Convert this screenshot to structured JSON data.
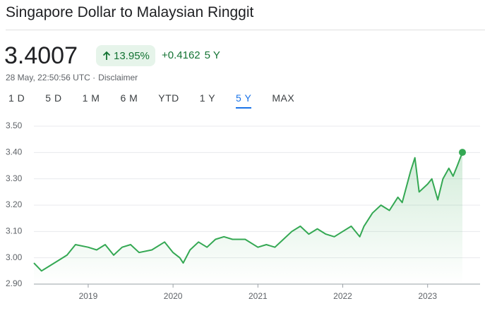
{
  "header": {
    "title": "Singapore Dollar to Malaysian Ringgit",
    "price": "3.4007",
    "change_percent": "13.95%",
    "change": "+0.4162",
    "period": "5 Y",
    "timestamp": "28 May, 22:50:56 UTC ·",
    "disclaimer": "Disclaimer"
  },
  "tabs": [
    "1 D",
    "5 D",
    "1 M",
    "6 M",
    "YTD",
    "1 Y",
    "5 Y",
    "MAX"
  ],
  "selected_tab": 6,
  "chart_data": {
    "type": "line",
    "color": "#34a853",
    "grid": true,
    "x": [
      2018.36,
      2018.45,
      2018.55,
      2018.65,
      2018.75,
      2018.85,
      2019.0,
      2019.1,
      2019.2,
      2019.3,
      2019.4,
      2019.5,
      2019.6,
      2019.75,
      2019.9,
      2020.0,
      2020.08,
      2020.12,
      2020.2,
      2020.3,
      2020.4,
      2020.5,
      2020.6,
      2020.7,
      2020.85,
      2021.0,
      2021.1,
      2021.2,
      2021.3,
      2021.4,
      2021.5,
      2021.6,
      2021.7,
      2021.8,
      2021.9,
      2022.0,
      2022.1,
      2022.2,
      2022.25,
      2022.35,
      2022.45,
      2022.55,
      2022.65,
      2022.7,
      2022.8,
      2022.85,
      2022.9,
      2023.0,
      2023.05,
      2023.12,
      2023.18,
      2023.25,
      2023.3,
      2023.35,
      2023.41
    ],
    "values": [
      2.98,
      2.95,
      2.97,
      2.99,
      3.01,
      3.05,
      3.04,
      3.03,
      3.05,
      3.01,
      3.04,
      3.05,
      3.02,
      3.03,
      3.06,
      3.02,
      3.0,
      2.98,
      3.03,
      3.06,
      3.04,
      3.07,
      3.08,
      3.07,
      3.07,
      3.04,
      3.05,
      3.04,
      3.07,
      3.1,
      3.12,
      3.09,
      3.11,
      3.09,
      3.08,
      3.1,
      3.12,
      3.08,
      3.12,
      3.17,
      3.2,
      3.18,
      3.23,
      3.21,
      3.33,
      3.38,
      3.25,
      3.28,
      3.3,
      3.22,
      3.3,
      3.34,
      3.31,
      3.35,
      3.4007
    ],
    "xlim": [
      2018.36,
      2023.41
    ],
    "xticks": [
      2019,
      2020,
      2021,
      2022,
      2023
    ],
    "ylim": [
      2.9,
      3.5
    ],
    "yticks": [
      {
        "value": 2.9,
        "label": "2.90"
      },
      {
        "value": 3.0,
        "label": "3.00"
      },
      {
        "value": 3.1,
        "label": "3.10"
      },
      {
        "value": 3.2,
        "label": "3.20"
      },
      {
        "value": 3.3,
        "label": "3.30"
      },
      {
        "value": 3.4,
        "label": "3.40"
      },
      {
        "value": 3.5,
        "label": "3.50"
      }
    ]
  }
}
